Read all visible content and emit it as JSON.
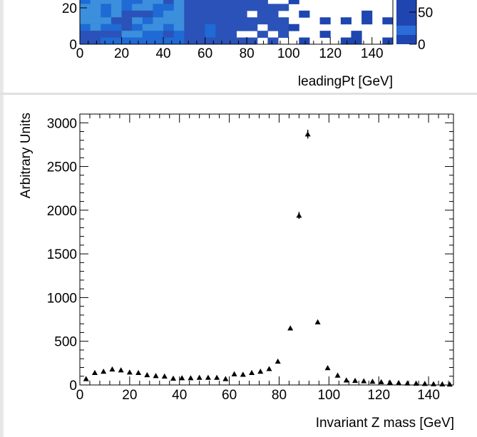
{
  "chart_data": [
    {
      "type": "heatmap",
      "xlabel": "leadingPt [GeV]",
      "ylabel": "",
      "x_ticks": [
        "0",
        "20",
        "40",
        "60",
        "80",
        "100",
        "120",
        "140"
      ],
      "y_ticks": [
        "0",
        "20"
      ],
      "colorbar_ticks": [
        "0",
        "50"
      ],
      "xlim": [
        0,
        150
      ],
      "colors": {
        "light": "#3b8fdc",
        "mid": "#1f6ad4",
        "dark": "#2b52b8",
        "deep": "#1f46b0"
      },
      "cells": [
        {
          "x": 0,
          "xw": 5,
          "level": "dark"
        },
        {
          "x": 5,
          "xw": 5,
          "level": "mid"
        },
        {
          "x": 10,
          "xw": 5,
          "level": "mid"
        },
        {
          "x": 15,
          "xw": 5,
          "level": "light"
        },
        {
          "x": 20,
          "xw": 5,
          "level": "mid"
        },
        {
          "x": 25,
          "xw": 5,
          "level": "light"
        },
        {
          "x": 30,
          "xw": 5,
          "level": "light"
        },
        {
          "x": 35,
          "xw": 5,
          "level": "light"
        },
        {
          "x": 40,
          "xw": 5,
          "level": "light"
        },
        {
          "x": 45,
          "xw": 5,
          "level": "mid"
        },
        {
          "x": 50,
          "xw": 5,
          "level": "dark"
        },
        {
          "x": 55,
          "xw": 5,
          "level": "dark"
        },
        {
          "x": 60,
          "xw": 5,
          "level": "dark"
        },
        {
          "x": 65,
          "xw": 5,
          "level": "dark"
        },
        {
          "x": 70,
          "xw": 5,
          "level": "dark"
        },
        {
          "x": 75,
          "xw": 5,
          "level": "dark"
        },
        {
          "x": 80,
          "xw": 5,
          "level": "dark"
        },
        {
          "x": 85,
          "xw": 5,
          "level": "dark"
        },
        {
          "x": 90,
          "xw": 5,
          "level": "dark"
        }
      ]
    },
    {
      "type": "scatter",
      "xlabel": "Invariant Z mass [GeV]",
      "ylabel": "Arbitrary Units",
      "xlim": [
        0,
        150
      ],
      "ylim": [
        0,
        3100
      ],
      "x_ticks": [
        0,
        20,
        40,
        60,
        80,
        100,
        120,
        140
      ],
      "y_ticks": [
        0,
        500,
        1000,
        1500,
        2000,
        2500,
        3000
      ],
      "series": [
        {
          "marker": "triangle",
          "x": [
            2.5,
            6.0,
            9.5,
            13.0,
            16.5,
            20.0,
            23.5,
            27.0,
            30.5,
            34.0,
            37.5,
            41.0,
            44.5,
            48.0,
            51.5,
            55.0,
            58.5,
            62.0,
            65.5,
            69.0,
            72.5,
            76.0,
            79.5,
            84.5,
            88.0,
            91.5,
            95.5,
            99.5,
            103.5,
            107.0,
            110.5,
            114.0,
            117.5,
            121.0,
            124.5,
            128.0,
            131.5,
            135.0,
            138.5,
            142.0,
            145.5,
            148.5
          ],
          "y": [
            70,
            140,
            155,
            180,
            170,
            145,
            140,
            115,
            105,
            100,
            75,
            80,
            80,
            85,
            85,
            85,
            70,
            125,
            120,
            140,
            155,
            185,
            270,
            650,
            1940,
            2870,
            720,
            195,
            110,
            55,
            50,
            45,
            40,
            35,
            30,
            25,
            20,
            18,
            15,
            12,
            10,
            8
          ],
          "err": [
            0,
            0,
            0,
            0,
            0,
            0,
            0,
            0,
            0,
            0,
            0,
            0,
            0,
            0,
            0,
            0,
            0,
            0,
            0,
            0,
            0,
            0,
            0,
            0,
            40,
            50,
            0,
            0,
            0,
            0,
            0,
            0,
            0,
            0,
            0,
            0,
            0,
            0,
            0,
            0,
            0,
            0
          ]
        }
      ]
    }
  ]
}
